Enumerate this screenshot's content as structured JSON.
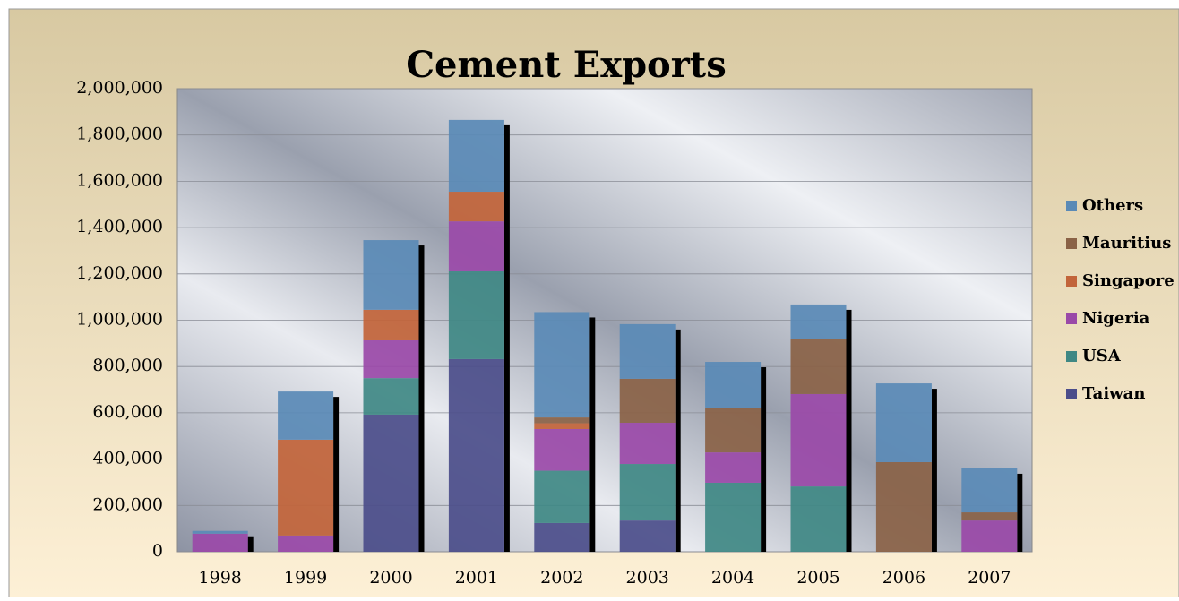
{
  "chart_data": {
    "type": "stacked_bar",
    "title": "Cement Exports",
    "categories": [
      "1998",
      "1999",
      "2000",
      "2001",
      "2002",
      "2003",
      "2004",
      "2005",
      "2006",
      "2007"
    ],
    "series": [
      {
        "name": "Taiwan",
        "color": "#4b4d8a",
        "values": [
          0,
          0,
          592000,
          832000,
          124000,
          135000,
          0,
          0,
          0,
          0
        ]
      },
      {
        "name": "USA",
        "color": "#3f8884",
        "values": [
          0,
          0,
          158000,
          379000,
          226000,
          244000,
          298000,
          282000,
          0,
          0
        ]
      },
      {
        "name": "Nigeria",
        "color": "#9a49a8",
        "values": [
          78000,
          70000,
          163000,
          216000,
          180000,
          178000,
          131000,
          399000,
          0,
          135000
        ]
      },
      {
        "name": "Singapore",
        "color": "#c2643a",
        "values": [
          0,
          414000,
          132000,
          128000,
          25000,
          0,
          0,
          0,
          0,
          0
        ]
      },
      {
        "name": "Mauritius",
        "color": "#8a6246",
        "values": [
          0,
          0,
          0,
          0,
          25000,
          190000,
          190000,
          236000,
          387000,
          35000
        ]
      },
      {
        "name": "Others",
        "color": "#5a8ab6",
        "values": [
          12000,
          208000,
          301000,
          310000,
          455000,
          236000,
          201000,
          151000,
          340000,
          190000
        ]
      }
    ],
    "ylim": [
      0,
      2000000
    ],
    "yticks": [
      0,
      {
        "value": 200000,
        "label": "200,000"
      },
      {
        "value": 400000,
        "label": "400,000"
      },
      {
        "value": 600000,
        "label": "600,000"
      },
      {
        "value": 800000,
        "label": "800,000"
      },
      {
        "value": 1000000,
        "label": "1,000,000"
      },
      {
        "value": 1200000,
        "label": "1,200,000"
      },
      {
        "value": 1400000,
        "label": "1,400,000"
      },
      {
        "value": 1600000,
        "label": "1,600,000"
      },
      {
        "value": 1800000,
        "label": "1,800,000"
      },
      {
        "value": 2000000,
        "label": "2,000,000"
      }
    ],
    "grid": true,
    "legend": "right"
  }
}
